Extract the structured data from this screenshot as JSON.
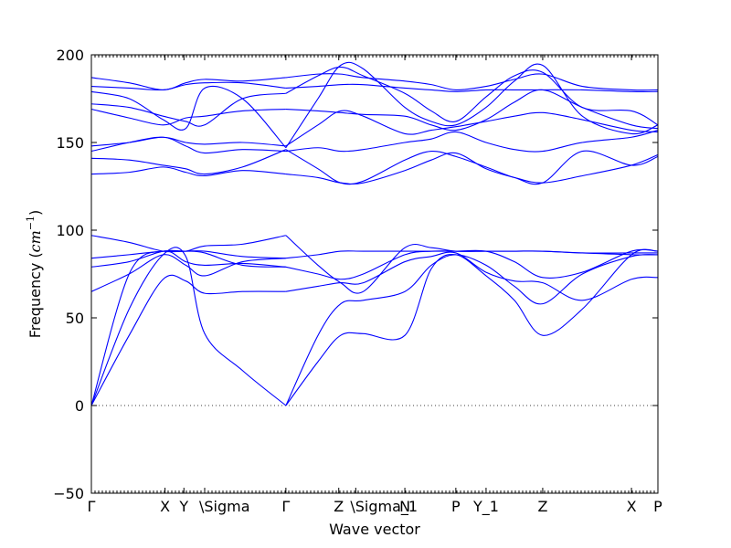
{
  "chart_data": {
    "type": "line",
    "xlabel": "Wave vector",
    "ylabel": "Frequency ($cm^{-1}$)",
    "ylabel_main": "Frequency (",
    "ylabel_unit": "cm",
    "ylabel_exp": "−1",
    "ylabel_close": ")",
    "ylim": [
      -50,
      200
    ],
    "yticks": [
      -50,
      0,
      50,
      100,
      150,
      200
    ],
    "xlim": [
      0,
      1.5
    ],
    "high_symmetry_points": [
      {
        "label": "Γ",
        "x": 0.0
      },
      {
        "label": "X",
        "x": 0.195
      },
      {
        "label": "Y",
        "x": 0.245
      },
      {
        "label": "\\Sigma",
        "x": 0.3
      },
      {
        "label": "Γ",
        "x": 0.515
      },
      {
        "label": "Z",
        "x": 0.655
      },
      {
        "label": "\\Sigma_1",
        "x": 0.7
      },
      {
        "label": "N",
        "x": 0.83
      },
      {
        "label": "P",
        "x": 0.965
      },
      {
        "label": "Y_1",
        "x": 1.045
      },
      {
        "label": "Z",
        "x": 1.195
      },
      {
        "label": "X",
        "x": 1.43
      },
      {
        "label": "P",
        "x": 1.5
      }
    ],
    "zero_reference_line": true,
    "series": [
      {
        "x": [
          0,
          0.1,
          0.19,
          0.25,
          0.3,
          0.4,
          0.515
        ],
        "y": [
          0,
          55,
          86,
          85,
          41,
          20,
          0
        ]
      },
      {
        "x": [
          0,
          0.1,
          0.19,
          0.25,
          0.3,
          0.4,
          0.515
        ],
        "y": [
          0,
          40,
          72,
          71,
          64,
          65,
          65
        ]
      },
      {
        "x": [
          0,
          0.1,
          0.19,
          0.25,
          0.3,
          0.4,
          0.515
        ],
        "y": [
          0,
          75,
          88,
          82,
          80,
          81,
          79
        ]
      },
      {
        "x": [
          0,
          0.1,
          0.19,
          0.25,
          0.3,
          0.4,
          0.515
        ],
        "y": [
          65,
          75,
          86,
          80,
          74,
          82,
          84
        ]
      },
      {
        "x": [
          0,
          0.1,
          0.19,
          0.25,
          0.3,
          0.4,
          0.515
        ],
        "y": [
          79,
          82,
          88,
          88,
          88,
          85,
          84
        ]
      },
      {
        "x": [
          0,
          0.1,
          0.19,
          0.25,
          0.3,
          0.4,
          0.515
        ],
        "y": [
          84,
          86,
          88,
          88,
          91,
          92,
          97
        ]
      },
      {
        "x": [
          0,
          0.1,
          0.19,
          0.25,
          0.3,
          0.4,
          0.515
        ],
        "y": [
          97,
          93,
          88,
          88,
          87,
          80,
          79
        ]
      },
      {
        "x": [
          0.515,
          0.6,
          0.66,
          0.72,
          0.83,
          0.9,
          0.965,
          1.045,
          1.12,
          1.195,
          1.3,
          1.43,
          1.5
        ],
        "y": [
          0,
          25,
          40,
          41,
          40,
          78,
          86,
          74,
          60,
          40,
          55,
          86,
          88
        ]
      },
      {
        "x": [
          0.515,
          0.6,
          0.66,
          0.72,
          0.83,
          0.9,
          0.965,
          1.045,
          1.12,
          1.195,
          1.3,
          1.43,
          1.5
        ],
        "y": [
          0,
          40,
          58,
          60,
          65,
          80,
          86,
          80,
          68,
          58,
          75,
          85,
          86
        ]
      },
      {
        "x": [
          0.515,
          0.6,
          0.66,
          0.72,
          0.83,
          0.9,
          0.965,
          1.045,
          1.12,
          1.195,
          1.3,
          1.43,
          1.5
        ],
        "y": [
          65,
          68,
          70,
          70,
          82,
          85,
          87,
          76,
          71,
          70,
          60,
          72,
          73
        ]
      },
      {
        "x": [
          0.515,
          0.6,
          0.66,
          0.72,
          0.83,
          0.9,
          0.965,
          1.045,
          1.12,
          1.195,
          1.3,
          1.43,
          1.5
        ],
        "y": [
          79,
          75,
          72,
          75,
          86,
          88,
          88,
          88,
          82,
          73,
          76,
          88,
          88
        ]
      },
      {
        "x": [
          0.515,
          0.6,
          0.66,
          0.72,
          0.83,
          0.9,
          0.965,
          1.045,
          1.12,
          1.195,
          1.3,
          1.43,
          1.5
        ],
        "y": [
          97,
          80,
          70,
          65,
          90,
          90,
          88,
          88,
          88,
          88,
          87,
          86,
          86
        ]
      },
      {
        "x": [
          0.515,
          0.6,
          0.66,
          0.72,
          0.83,
          0.9,
          0.965,
          1.045,
          1.12,
          1.195,
          1.3,
          1.43,
          1.5
        ],
        "y": [
          84,
          86,
          88,
          88,
          88,
          88,
          88,
          88,
          88,
          88,
          87,
          87,
          87
        ]
      },
      {
        "x": [
          0,
          0.1,
          0.19,
          0.25,
          0.3,
          0.4,
          0.515
        ],
        "y": [
          132,
          133,
          136,
          133,
          131,
          134,
          132
        ]
      },
      {
        "x": [
          0,
          0.1,
          0.19,
          0.25,
          0.3,
          0.4,
          0.515
        ],
        "y": [
          141,
          140,
          137,
          135,
          132,
          136,
          146
        ]
      },
      {
        "x": [
          0,
          0.1,
          0.19,
          0.25,
          0.3,
          0.4,
          0.515
        ],
        "y": [
          145,
          150,
          153,
          148,
          144,
          146,
          145
        ]
      },
      {
        "x": [
          0,
          0.1,
          0.19,
          0.25,
          0.3,
          0.4,
          0.515
        ],
        "y": [
          148,
          150,
          153,
          150,
          149,
          150,
          148
        ]
      },
      {
        "x": [
          0,
          0.1,
          0.19,
          0.25,
          0.3,
          0.4,
          0.515
        ],
        "y": [
          169,
          164,
          160,
          164,
          165,
          168,
          169
        ]
      },
      {
        "x": [
          0,
          0.1,
          0.19,
          0.25,
          0.3,
          0.4,
          0.515
        ],
        "y": [
          172,
          170,
          165,
          162,
          160,
          175,
          178
        ]
      },
      {
        "x": [
          0,
          0.1,
          0.19,
          0.25,
          0.3,
          0.4,
          0.515
        ],
        "y": [
          179,
          175,
          163,
          158,
          181,
          175,
          147
        ]
      },
      {
        "x": [
          0,
          0.1,
          0.19,
          0.25,
          0.3,
          0.4,
          0.515
        ],
        "y": [
          182,
          181,
          180,
          183,
          184,
          184,
          181
        ]
      },
      {
        "x": [
          0,
          0.1,
          0.19,
          0.25,
          0.3,
          0.4,
          0.515
        ],
        "y": [
          187,
          184,
          180,
          184,
          186,
          185,
          187
        ]
      },
      {
        "x": [
          0.515,
          0.6,
          0.66,
          0.72,
          0.83,
          0.9,
          0.965,
          1.045,
          1.12,
          1.195,
          1.3,
          1.43,
          1.5
        ],
        "y": [
          132,
          130,
          127,
          127,
          134,
          140,
          144,
          135,
          130,
          127,
          131,
          137,
          143
        ]
      },
      {
        "x": [
          0.515,
          0.6,
          0.66,
          0.72,
          0.83,
          0.9,
          0.965,
          1.045,
          1.12,
          1.195,
          1.3,
          1.43,
          1.5
        ],
        "y": [
          146,
          135,
          127,
          128,
          140,
          145,
          142,
          136,
          130,
          127,
          145,
          137,
          142
        ]
      },
      {
        "x": [
          0.515,
          0.6,
          0.66,
          0.72,
          0.83,
          0.9,
          0.965,
          1.045,
          1.12,
          1.195,
          1.3,
          1.43,
          1.5
        ],
        "y": [
          145,
          147,
          145,
          146,
          150,
          152,
          156,
          150,
          146,
          145,
          150,
          153,
          157
        ]
      },
      {
        "x": [
          0.515,
          0.6,
          0.66,
          0.72,
          0.83,
          0.9,
          0.965,
          1.045,
          1.12,
          1.195,
          1.3,
          1.43,
          1.5
        ],
        "y": [
          148,
          160,
          168,
          165,
          155,
          157,
          159,
          162,
          165,
          167,
          163,
          157,
          156
        ]
      },
      {
        "x": [
          0.515,
          0.6,
          0.66,
          0.72,
          0.83,
          0.9,
          0.965,
          1.045,
          1.12,
          1.195,
          1.3,
          1.43,
          1.5
        ],
        "y": [
          169,
          168,
          167,
          166,
          165,
          160,
          157,
          163,
          173,
          180,
          170,
          160,
          158
        ]
      },
      {
        "x": [
          0.515,
          0.6,
          0.66,
          0.72,
          0.83,
          0.9,
          0.965,
          1.045,
          1.12,
          1.195,
          1.3,
          1.43,
          1.5
        ],
        "y": [
          147,
          175,
          194,
          192,
          170,
          162,
          160,
          170,
          185,
          194,
          165,
          155,
          160
        ]
      },
      {
        "x": [
          0.515,
          0.6,
          0.66,
          0.72,
          0.83,
          0.9,
          0.965,
          1.045,
          1.12,
          1.195,
          1.3,
          1.43,
          1.5
        ],
        "y": [
          178,
          188,
          193,
          188,
          178,
          168,
          162,
          176,
          188,
          190,
          170,
          168,
          160
        ]
      },
      {
        "x": [
          0.515,
          0.6,
          0.66,
          0.72,
          0.83,
          0.9,
          0.965,
          1.045,
          1.12,
          1.195,
          1.3,
          1.43,
          1.5
        ],
        "y": [
          181,
          182,
          183,
          183,
          181,
          180,
          179,
          180,
          180,
          180,
          180,
          179,
          179
        ]
      },
      {
        "x": [
          0.515,
          0.6,
          0.66,
          0.72,
          0.83,
          0.9,
          0.965,
          1.045,
          1.12,
          1.195,
          1.3,
          1.43,
          1.5
        ],
        "y": [
          187,
          189,
          189,
          187,
          185,
          183,
          180,
          182,
          186,
          189,
          182,
          180,
          180
        ]
      }
    ]
  }
}
